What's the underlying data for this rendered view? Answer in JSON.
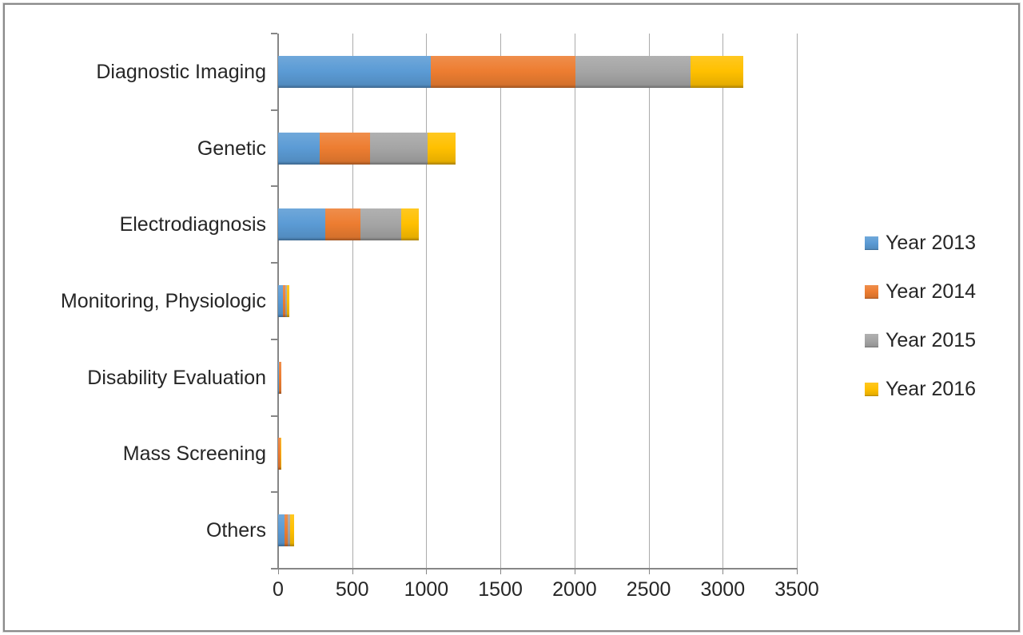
{
  "chart_data": {
    "type": "bar",
    "orientation": "horizontal",
    "stacked": true,
    "title": "",
    "xlabel": "",
    "ylabel": "",
    "xlim": [
      0,
      3500
    ],
    "x_ticks": [
      "0",
      "500",
      "1000",
      "1500",
      "2000",
      "2500",
      "3000",
      "3500"
    ],
    "grid": true,
    "legend_position": "right",
    "categories": [
      "Diagnostic Imaging",
      "Genetic",
      "Electrodiagnosis",
      "Monitoring, Physiologic",
      "Disability Evaluation",
      "Mass Screening",
      "Others"
    ],
    "series": [
      {
        "name": "Year 2013",
        "color": "#5B9BD5",
        "values": [
          1030,
          280,
          320,
          35,
          4,
          2,
          45
        ]
      },
      {
        "name": "Year 2014",
        "color": "#ED7D31",
        "values": [
          975,
          340,
          235,
          15,
          15,
          12,
          22
        ]
      },
      {
        "name": "Year 2015",
        "color": "#A5A5A5",
        "values": [
          780,
          390,
          275,
          10,
          3,
          3,
          16
        ]
      },
      {
        "name": "Year 2016",
        "color": "#FFC000",
        "values": [
          355,
          185,
          120,
          18,
          2,
          3,
          25
        ]
      }
    ],
    "totals": [
      3140,
      1195,
      950,
      78,
      24,
      20,
      108
    ]
  },
  "colors": {
    "gridline": "#ababab",
    "axis": "#868686",
    "text": "#262626",
    "frame_border": "#8a8a8a"
  }
}
